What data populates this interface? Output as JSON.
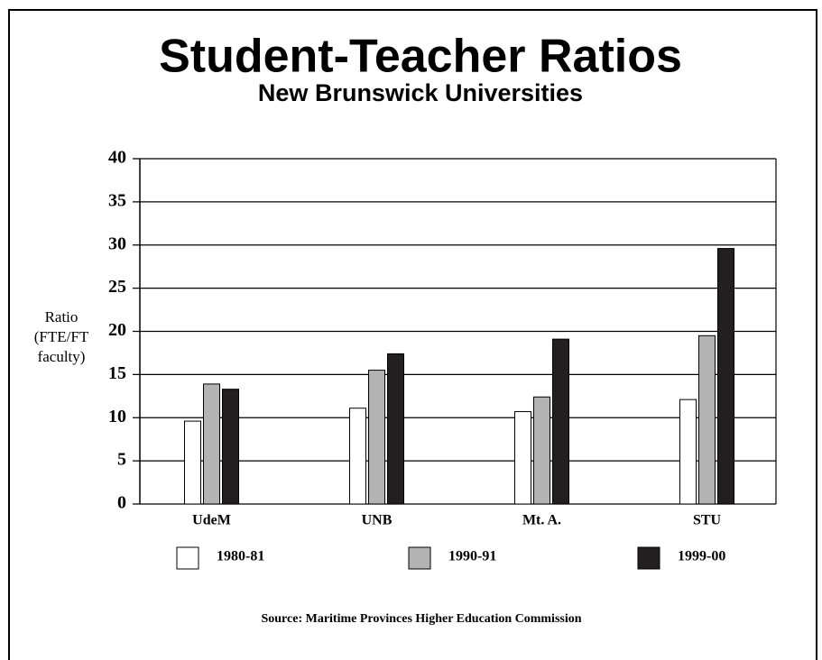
{
  "chart_data": {
    "type": "bar",
    "title": "Student-Teacher Ratios",
    "subtitle": "New Brunswick Universities",
    "ylabel": [
      "Ratio",
      "(FTE/FT",
      "faculty)"
    ],
    "source": "Source: Maritime Provinces Higher Education Commission",
    "categories": [
      "UdeM",
      "UNB",
      "Mt. A.",
      "STU"
    ],
    "series": [
      {
        "name": "1980-81",
        "color": "#ffffff",
        "values": [
          9.6,
          11.1,
          10.7,
          12.1
        ]
      },
      {
        "name": "1990-91",
        "color": "#b3b3b3",
        "values": [
          13.9,
          15.5,
          12.4,
          19.5
        ]
      },
      {
        "name": "1999-00",
        "color": "#231f20",
        "values": [
          13.3,
          17.4,
          19.1,
          29.6
        ]
      }
    ],
    "ylim": [
      0,
      40
    ],
    "yticks": [
      0,
      5,
      10,
      15,
      20,
      25,
      30,
      35,
      40
    ],
    "grid": true
  }
}
